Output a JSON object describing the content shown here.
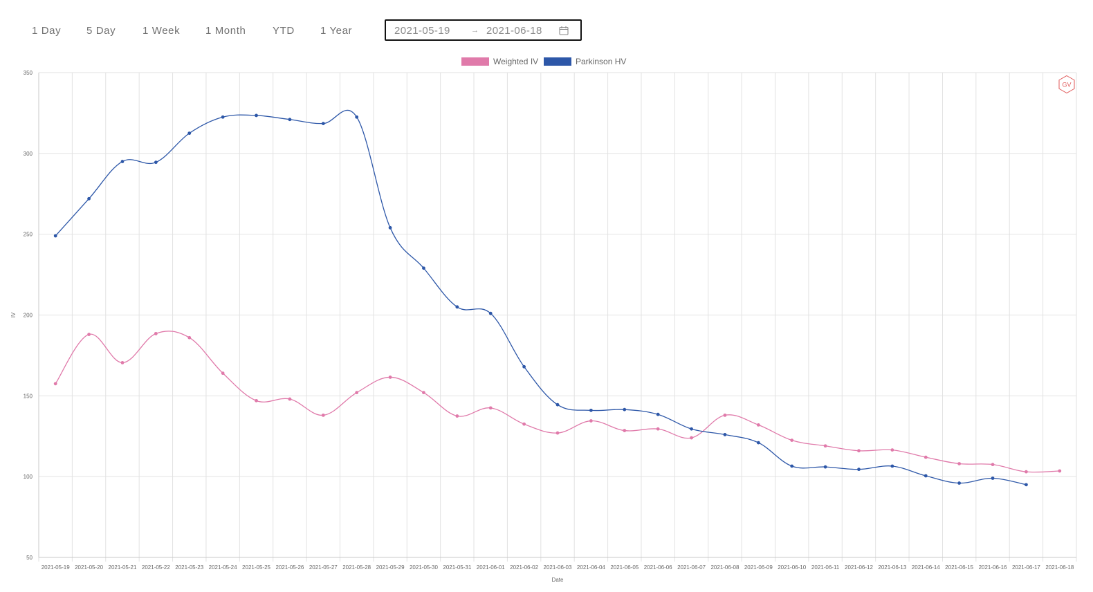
{
  "toolbar": {
    "ranges": [
      "1 Day",
      "5 Day",
      "1 Week",
      "1 Month",
      "YTD",
      "1 Year"
    ],
    "date_start": "2021-05-19",
    "date_end": "2021-06-18",
    "separator": "→"
  },
  "colors": {
    "weighted_iv": "#e07aaa",
    "parkinson_hv": "#2d57a8",
    "grid": "#e2e2e2"
  },
  "watermark_text": "GV",
  "chart_data": {
    "type": "line",
    "xlabel": "Date",
    "ylabel": "IV",
    "ylim": [
      50,
      350
    ],
    "yticks": [
      50,
      100,
      150,
      200,
      250,
      300,
      350
    ],
    "grid": true,
    "legend_position": "top-center",
    "x": [
      "2021-05-19",
      "2021-05-20",
      "2021-05-21",
      "2021-05-22",
      "2021-05-23",
      "2021-05-24",
      "2021-05-25",
      "2021-05-26",
      "2021-05-27",
      "2021-05-28",
      "2021-05-29",
      "2021-05-30",
      "2021-05-31",
      "2021-06-01",
      "2021-06-02",
      "2021-06-03",
      "2021-06-04",
      "2021-06-05",
      "2021-06-06",
      "2021-06-07",
      "2021-06-08",
      "2021-06-09",
      "2021-06-10",
      "2021-06-11",
      "2021-06-12",
      "2021-06-13",
      "2021-06-14",
      "2021-06-15",
      "2021-06-16",
      "2021-06-17",
      "2021-06-18"
    ],
    "series": [
      {
        "name": "Weighted IV",
        "values": [
          157.5,
          188,
          170.5,
          188.5,
          186,
          164,
          147,
          148,
          138,
          152,
          161.5,
          152,
          137.5,
          142.5,
          132.5,
          127,
          134.5,
          128.5,
          129.5,
          124,
          138,
          132,
          122.5,
          119,
          116,
          116.5,
          112,
          108,
          107.5,
          103,
          103.5
        ]
      },
      {
        "name": "Parkinson HV",
        "values": [
          249,
          272,
          295,
          294.5,
          312.5,
          322.5,
          323.5,
          321,
          318.5,
          322.5,
          254,
          229,
          205,
          201,
          168,
          144.5,
          141,
          141.5,
          138.5,
          129.5,
          126,
          121,
          106.5,
          106,
          104.5,
          106.5,
          100.5,
          96,
          99,
          95,
          null
        ]
      }
    ]
  }
}
